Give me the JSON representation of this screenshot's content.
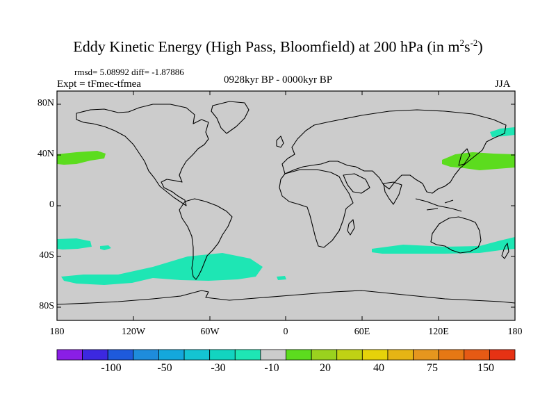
{
  "header": {
    "title_main": "Eddy Kinetic Energy (High Pass, Bloomfield) at 200 hPa (in m",
    "title_sup1": "2",
    "title_s": "s",
    "title_sup2": "-2",
    "title_close": ")",
    "stats": "rmsd= 5.08992 diff= -1.87886",
    "experiment": "Expt = tFmec-tfmea",
    "period": "0928kyr BP - 0000kyr BP",
    "season": "JJA"
  },
  "axes": {
    "lat_labels": [
      "80N",
      "40N",
      "0",
      "40S",
      "80S"
    ],
    "lon_labels": [
      "180",
      "120W",
      "60W",
      "0",
      "60E",
      "120E",
      "180"
    ]
  },
  "colorbar": {
    "colors": [
      "#8a1ee6",
      "#3c28e0",
      "#1e5adc",
      "#1e8cdc",
      "#14a8dc",
      "#14c4d2",
      "#12d4c0",
      "#1ee6b4",
      "#cccccc",
      "#5cdc1e",
      "#9ad21e",
      "#c0d214",
      "#e6d20a",
      "#e6b414",
      "#e6961e",
      "#e67814",
      "#e65a14",
      "#e63214"
    ],
    "labels": [
      "-100",
      "-50",
      "-30",
      "-10",
      "20",
      "40",
      "75",
      "150"
    ]
  },
  "colors": {
    "land_bg": "#cccccc",
    "negative_fill": "#1ee6b4",
    "positive_fill": "#5cdc1e"
  }
}
